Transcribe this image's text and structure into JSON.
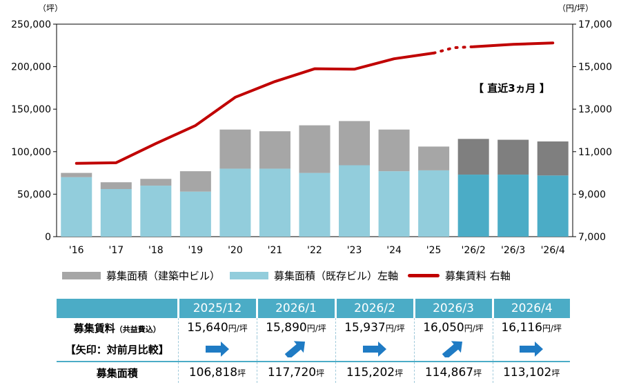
{
  "chart_data": {
    "type": "bar+line",
    "categories": [
      "'16",
      "'17",
      "'18",
      "'19",
      "'20",
      "'21",
      "'22",
      "'23",
      "'24",
      "'25",
      "'26/2",
      "'26/3",
      "'26/4"
    ],
    "series": [
      {
        "name": "募集面積（既存ビル）左軸",
        "type": "stacked-bar",
        "axis": "left",
        "values": [
          70000,
          56000,
          60000,
          53000,
          80000,
          80000,
          75000,
          84000,
          77000,
          78000,
          73000,
          73000,
          72000
        ]
      },
      {
        "name": "募集面積（建築中ビル）",
        "type": "stacked-bar",
        "axis": "left",
        "values": [
          5000,
          8000,
          8000,
          24000,
          46000,
          44000,
          56000,
          52000,
          49000,
          28000,
          42000,
          41000,
          40000
        ]
      },
      {
        "name": "募集賃料 右軸",
        "type": "line",
        "axis": "right",
        "values": [
          10450,
          10480,
          11380,
          12230,
          13560,
          14300,
          14900,
          14880,
          15370,
          15640,
          15937,
          16050,
          16116
        ],
        "dotted_segment": [
          15640,
          15890,
          15937
        ]
      }
    ],
    "left_axis": {
      "unit": "（坪）",
      "ylim": [
        0,
        250000
      ],
      "ticks": [
        "0",
        "50,000",
        "100,000",
        "150,000",
        "200,000",
        "250,000"
      ]
    },
    "right_axis": {
      "unit": "（円/坪）",
      "ylim": [
        7000,
        17000
      ],
      "ticks": [
        "7,000",
        "9,000",
        "11,000",
        "13,000",
        "15,000",
        "17,000"
      ]
    },
    "annotation": "【 直近3ヵ月 】",
    "recent_bar_count": 3,
    "grid": false,
    "legend_position": "bottom",
    "colors": {
      "existing": "#92cddc",
      "existing_recent": "#4bacc6",
      "construction": "#a6a6a6",
      "construction_recent": "#7f7f7f",
      "rent_line": "#c00000"
    }
  },
  "legend": {
    "construction": "募集面積（建築中ビル）",
    "existing": "募集面積（既存ビル）左軸",
    "rent": "募集賃料 右軸"
  },
  "table": {
    "months": [
      "2025/12",
      "2026/1",
      "2026/2",
      "2026/3",
      "2026/4"
    ],
    "rent_label": "募集賃料",
    "rent_label_note": "（共益費込）",
    "rent_values": [
      "15,640",
      "15,890",
      "15,937",
      "16,050",
      "16,116"
    ],
    "rent_unit": "円/坪",
    "arrow_label": "【矢印：対前月比較】",
    "arrows": [
      "right",
      "up-right",
      "right",
      "up-right",
      "right"
    ],
    "area_label": "募集面積",
    "area_values": [
      "106,818",
      "117,720",
      "115,202",
      "114,867",
      "113,102"
    ],
    "area_unit": "坪",
    "arrow_color": "#1f7bc4"
  }
}
